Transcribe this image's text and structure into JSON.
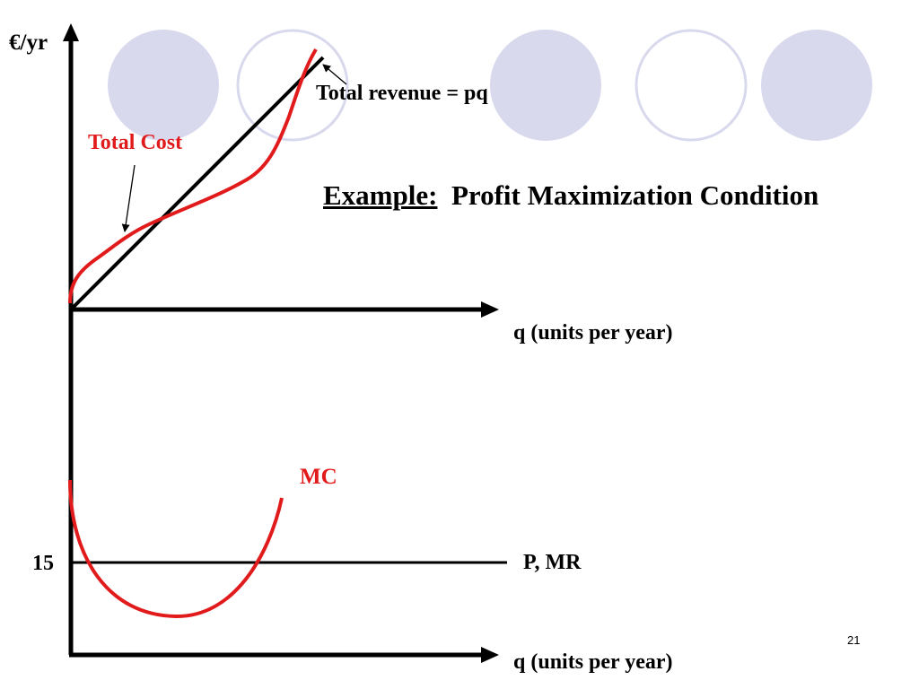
{
  "slide": {
    "title_lead": "Example:",
    "title_rest": "Profit Maximization Condition",
    "page_number": "21"
  },
  "top_graph": {
    "y_axis_label": "€/yr",
    "x_axis_label": "q (units per year)",
    "total_cost_label": "Total Cost",
    "total_revenue_label": "Total revenue = pq"
  },
  "bottom_graph": {
    "x_axis_label": "q (units per year)",
    "mc_label": "MC",
    "price_line_label": "P, MR",
    "price_value": "15"
  },
  "colors": {
    "curve_red": "#e11b1b",
    "axis_black": "#000000",
    "circle_fill": "#d9d9ee",
    "circle_stroke": "#d9d9ee"
  }
}
